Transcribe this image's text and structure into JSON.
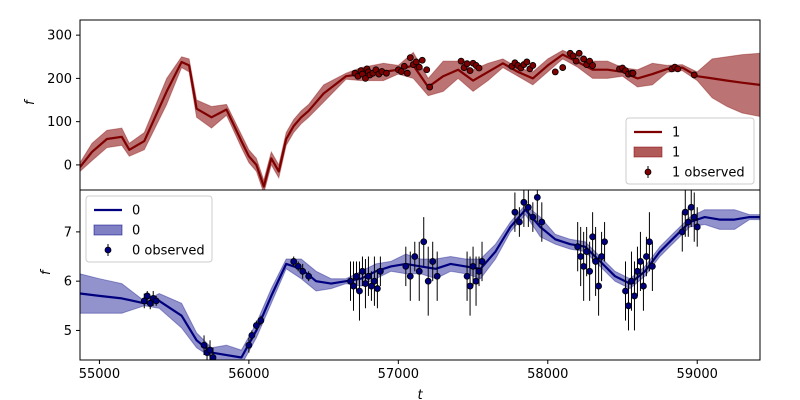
{
  "chart_data": [
    {
      "type": "line",
      "panel": "top",
      "xlabel": "",
      "ylabel": "f",
      "xlim": [
        54870,
        59420
      ],
      "ylim": [
        -58,
        335
      ],
      "yticks": [
        0,
        100,
        200,
        300
      ],
      "colors": {
        "line": "#7f0000",
        "band": "#b05a5a",
        "points": "#7f0000"
      },
      "legend": {
        "placement": "lower-right",
        "entries": [
          {
            "kind": "line",
            "label": "1"
          },
          {
            "kind": "band",
            "label": "1"
          },
          {
            "kind": "points",
            "label": "1 observed"
          }
        ]
      },
      "model": {
        "x": [
          54870,
          54950,
          55050,
          55150,
          55200,
          55300,
          55450,
          55550,
          55600,
          55650,
          55750,
          55850,
          55950,
          56000,
          56050,
          56100,
          56150,
          56200,
          56250,
          56300,
          56350,
          56400,
          56500,
          56650,
          56750,
          56900,
          57000,
          57100,
          57200,
          57300,
          57400,
          57500,
          57600,
          57700,
          57800,
          57900,
          58000,
          58100,
          58200,
          58300,
          58400,
          58500,
          58600,
          58700,
          58800,
          58900,
          59000,
          59100,
          59200,
          59300,
          59420
        ],
        "y": [
          -5,
          30,
          60,
          65,
          35,
          55,
          170,
          238,
          230,
          130,
          110,
          128,
          55,
          20,
          0,
          -50,
          15,
          -15,
          60,
          90,
          110,
          125,
          165,
          205,
          210,
          215,
          220,
          230,
          180,
          205,
          220,
          195,
          215,
          235,
          215,
          200,
          230,
          255,
          238,
          220,
          220,
          215,
          200,
          210,
          222,
          225,
          205,
          200,
          195,
          190,
          185
        ],
        "upper": [
          5,
          50,
          80,
          85,
          50,
          75,
          200,
          250,
          245,
          150,
          135,
          140,
          70,
          35,
          15,
          -35,
          30,
          0,
          75,
          105,
          125,
          140,
          185,
          212,
          225,
          235,
          230,
          260,
          200,
          240,
          240,
          220,
          235,
          245,
          225,
          215,
          245,
          265,
          250,
          240,
          240,
          225,
          220,
          235,
          230,
          232,
          215,
          245,
          250,
          255,
          258
        ],
        "lower": [
          -15,
          10,
          40,
          45,
          20,
          35,
          140,
          225,
          215,
          110,
          85,
          115,
          40,
          5,
          -15,
          -65,
          0,
          -30,
          45,
          75,
          95,
          110,
          145,
          198,
          195,
          195,
          210,
          200,
          160,
          170,
          200,
          170,
          195,
          225,
          205,
          185,
          215,
          245,
          226,
          200,
          200,
          205,
          180,
          185,
          214,
          218,
          195,
          155,
          135,
          120,
          112
        ]
      },
      "observed": {
        "x": [
          56710,
          56730,
          56750,
          56760,
          56780,
          56790,
          56800,
          56810,
          56830,
          56850,
          56870,
          56890,
          56920,
          57000,
          57020,
          57040,
          57060,
          57080,
          57100,
          57120,
          57140,
          57160,
          57190,
          57210,
          57420,
          57440,
          57460,
          57480,
          57500,
          57520,
          57540,
          57760,
          57780,
          57800,
          57820,
          57840,
          57860,
          57880,
          57900,
          58050,
          58100,
          58150,
          58170,
          58190,
          58210,
          58240,
          58260,
          58280,
          58300,
          58480,
          58500,
          58520,
          58540,
          58560,
          58570,
          58830,
          58850,
          58870,
          58980
        ],
        "y": [
          212,
          205,
          218,
          210,
          200,
          222,
          215,
          208,
          212,
          220,
          210,
          216,
          212,
          220,
          216,
          228,
          212,
          248,
          232,
          238,
          226,
          242,
          220,
          180,
          240,
          225,
          234,
          218,
          235,
          230,
          224,
          228,
          236,
          230,
          224,
          232,
          238,
          222,
          230,
          215,
          225,
          258,
          252,
          240,
          258,
          245,
          232,
          240,
          230,
          222,
          224,
          218,
          210,
          212,
          212,
          222,
          226,
          222,
          208
        ]
      }
    },
    {
      "type": "line",
      "panel": "bottom",
      "xlabel": "t",
      "ylabel": "f",
      "xlim": [
        54870,
        59420
      ],
      "ylim": [
        4.4,
        7.85
      ],
      "xticks": [
        55000,
        56000,
        57000,
        58000,
        59000
      ],
      "yticks": [
        5,
        6,
        7
      ],
      "colors": {
        "line": "#00007f",
        "band": "#7f7fc4",
        "points": "#00007f"
      },
      "legend": {
        "placement": "upper-left",
        "entries": [
          {
            "kind": "line",
            "label": "0"
          },
          {
            "kind": "band",
            "label": "0"
          },
          {
            "kind": "points",
            "label": "0 observed"
          }
        ]
      },
      "model": {
        "x": [
          54870,
          55000,
          55150,
          55300,
          55400,
          55550,
          55650,
          55750,
          55850,
          55950,
          56050,
          56150,
          56250,
          56350,
          56450,
          56550,
          56650,
          56750,
          56850,
          56950,
          57050,
          57150,
          57250,
          57350,
          57450,
          57550,
          57650,
          57750,
          57850,
          57950,
          58050,
          58150,
          58250,
          58350,
          58450,
          58550,
          58650,
          58750,
          58850,
          58950,
          59050,
          59150,
          59250,
          59350,
          59420
        ],
        "y": [
          5.75,
          5.7,
          5.65,
          5.55,
          5.6,
          5.3,
          4.8,
          4.55,
          4.5,
          4.45,
          5.0,
          5.7,
          6.35,
          6.25,
          6.0,
          5.95,
          6.0,
          6.05,
          6.2,
          6.3,
          6.35,
          6.3,
          6.25,
          6.35,
          6.3,
          6.25,
          6.6,
          7.1,
          7.45,
          7.1,
          6.85,
          6.75,
          6.7,
          6.4,
          6.1,
          5.95,
          6.2,
          6.6,
          6.9,
          7.2,
          7.3,
          7.25,
          7.25,
          7.3,
          7.3
        ],
        "upper": [
          6.15,
          6.05,
          5.95,
          5.6,
          5.75,
          5.55,
          4.95,
          4.65,
          4.7,
          4.6,
          5.15,
          5.85,
          6.45,
          6.45,
          6.2,
          6.05,
          6.05,
          6.2,
          6.35,
          6.4,
          6.55,
          6.45,
          6.45,
          6.5,
          6.45,
          6.45,
          6.75,
          7.2,
          7.55,
          7.3,
          6.95,
          6.85,
          6.8,
          6.5,
          6.2,
          6.05,
          6.3,
          6.7,
          7.0,
          7.3,
          7.45,
          7.45,
          7.45,
          7.35,
          7.35
        ],
        "lower": [
          5.35,
          5.35,
          5.35,
          5.5,
          5.45,
          5.05,
          4.65,
          4.45,
          4.3,
          4.3,
          4.85,
          5.55,
          6.25,
          6.05,
          5.8,
          5.85,
          5.95,
          5.9,
          6.05,
          6.2,
          6.15,
          6.15,
          6.05,
          6.2,
          6.15,
          6.05,
          6.45,
          7.0,
          7.35,
          6.9,
          6.75,
          6.65,
          6.6,
          6.3,
          6.0,
          5.85,
          6.1,
          6.5,
          6.8,
          7.1,
          7.15,
          7.05,
          7.05,
          7.25,
          7.25
        ]
      },
      "observed": {
        "x": [
          55300,
          55320,
          55340,
          55360,
          55380,
          55700,
          55720,
          55740,
          55760,
          56000,
          56020,
          56050,
          56080,
          56300,
          56330,
          56360,
          56400,
          56680,
          56700,
          56720,
          56740,
          56760,
          56780,
          56800,
          56820,
          56840,
          56860,
          56880,
          57050,
          57080,
          57110,
          57140,
          57170,
          57200,
          57230,
          57260,
          57460,
          57480,
          57500,
          57520,
          57540,
          57560,
          57780,
          57810,
          57840,
          57870,
          57900,
          57930,
          57960,
          58200,
          58220,
          58240,
          58260,
          58280,
          58300,
          58320,
          58340,
          58360,
          58380,
          58520,
          58540,
          58560,
          58580,
          58600,
          58620,
          58640,
          58660,
          58680,
          58700,
          58900,
          58920,
          58940,
          58960,
          58980,
          59000
        ],
        "y": [
          5.6,
          5.7,
          5.55,
          5.65,
          5.6,
          4.7,
          4.55,
          4.6,
          4.45,
          4.7,
          4.9,
          5.1,
          5.2,
          6.4,
          6.3,
          6.2,
          6.1,
          6.0,
          5.9,
          6.1,
          5.8,
          6.2,
          5.95,
          6.1,
          5.9,
          6.0,
          5.85,
          6.2,
          6.3,
          6.1,
          6.5,
          6.2,
          6.8,
          6.0,
          6.4,
          6.1,
          6.1,
          5.9,
          6.3,
          6.0,
          6.2,
          6.4,
          7.4,
          7.2,
          7.6,
          7.5,
          7.3,
          7.7,
          7.2,
          6.7,
          6.5,
          6.3,
          6.6,
          6.2,
          6.9,
          6.4,
          5.9,
          6.5,
          6.8,
          5.8,
          5.5,
          6.0,
          5.7,
          6.2,
          6.4,
          5.9,
          6.5,
          6.8,
          6.3,
          7.0,
          7.4,
          7.2,
          7.5,
          7.3,
          7.1
        ],
        "err": [
          0.15,
          0.1,
          0.12,
          0.15,
          0.1,
          0.2,
          0.15,
          0.2,
          0.2,
          0.15,
          0.1,
          0.1,
          0.1,
          0.1,
          0.1,
          0.15,
          0.1,
          0.4,
          0.5,
          0.3,
          0.6,
          0.3,
          0.5,
          0.4,
          0.3,
          0.5,
          0.4,
          0.3,
          0.4,
          0.5,
          0.3,
          0.6,
          0.5,
          0.7,
          0.4,
          0.5,
          0.5,
          0.6,
          0.4,
          0.5,
          0.3,
          0.4,
          0.4,
          0.3,
          0.5,
          0.4,
          0.3,
          0.5,
          0.4,
          0.5,
          0.6,
          0.7,
          0.5,
          0.6,
          0.5,
          0.7,
          0.6,
          0.5,
          0.4,
          0.6,
          0.5,
          0.6,
          0.7,
          0.5,
          0.6,
          0.5,
          0.4,
          0.6,
          0.5,
          0.4,
          0.5,
          0.3,
          0.4,
          0.5,
          0.4
        ]
      }
    }
  ]
}
